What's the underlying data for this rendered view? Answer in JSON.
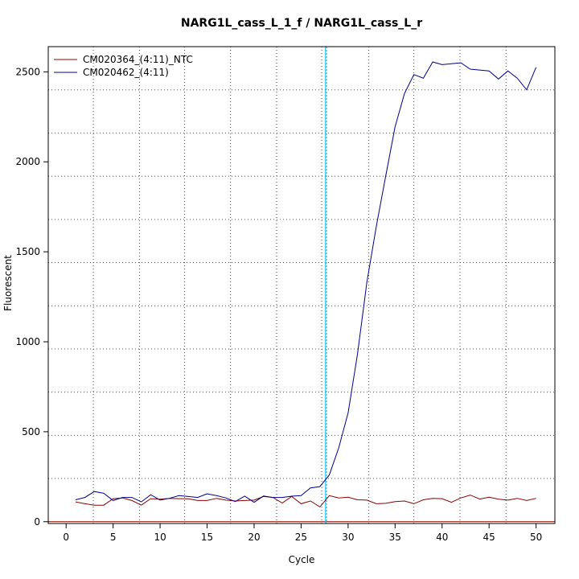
{
  "chart_data": {
    "type": "line",
    "title": "NARG1L_cass_L_1_f / NARG1L_cass_L_r",
    "xlabel": "Cycle",
    "ylabel": "Fluorescent",
    "xlim": [
      -1.9,
      52
    ],
    "ylim": [
      -10,
      2640
    ],
    "x_ticks": [
      0,
      5,
      10,
      15,
      20,
      25,
      30,
      35,
      40,
      45,
      50
    ],
    "y_ticks": [
      0,
      500,
      1000,
      1500,
      2000,
      2500
    ],
    "grid": {
      "x_lines": [
        2.9,
        7.8,
        12.6,
        17.5,
        22.4,
        27.2,
        32.2,
        37.0,
        41.9,
        46.8
      ],
      "y_lines": [
        240,
        480,
        720,
        960,
        1200,
        1440,
        1680,
        1920,
        2160,
        2400
      ]
    },
    "threshold": {
      "x": 27.6,
      "color": "#00bfff"
    },
    "baseline": {
      "y": 0,
      "color": "#8b0000"
    },
    "legend_position": "top-left",
    "series": [
      {
        "name": "CM020364_(4:11)_NTC",
        "color": "#8b0000",
        "x": [
          1,
          2,
          3,
          4,
          5,
          6,
          7,
          8,
          9,
          10,
          11,
          12,
          13,
          14,
          15,
          16,
          17,
          18,
          19,
          20,
          21,
          22,
          23,
          24,
          25,
          26,
          27,
          28,
          29,
          30,
          31,
          32,
          33,
          34,
          35,
          36,
          37,
          38,
          39,
          40,
          41,
          42,
          43,
          44,
          45,
          46,
          47,
          48,
          49,
          50
        ],
        "y": [
          110,
          100,
          92,
          92,
          128,
          132,
          118,
          92,
          128,
          125,
          130,
          128,
          127,
          118,
          118,
          130,
          120,
          115,
          118,
          120,
          140,
          135,
          104,
          140,
          100,
          115,
          82,
          145,
          132,
          136,
          122,
          120,
          100,
          102,
          112,
          115,
          100,
          122,
          130,
          128,
          108,
          132,
          148,
          126,
          136,
          125,
          120,
          130,
          118,
          130
        ]
      },
      {
        "name": "CM020462_(4:11)",
        "color": "#00008b",
        "x": [
          1,
          2,
          3,
          4,
          5,
          6,
          7,
          8,
          9,
          10,
          11,
          12,
          13,
          14,
          15,
          16,
          17,
          18,
          19,
          20,
          21,
          22,
          23,
          24,
          25,
          26,
          27,
          28,
          29,
          30,
          31,
          32,
          33,
          34,
          35,
          36,
          37,
          38,
          39,
          40,
          41,
          42,
          43,
          44,
          45,
          46,
          47,
          48,
          49,
          50
        ],
        "y": [
          122,
          135,
          168,
          158,
          118,
          135,
          135,
          110,
          150,
          120,
          130,
          145,
          140,
          135,
          155,
          145,
          132,
          112,
          142,
          108,
          143,
          135,
          135,
          142,
          145,
          188,
          195,
          260,
          410,
          605,
          930,
          1330,
          1640,
          1920,
          2195,
          2380,
          2485,
          2465,
          2555,
          2540,
          2545,
          2550,
          2515,
          2510,
          2505,
          2460,
          2505,
          2465,
          2400,
          2525
        ]
      }
    ]
  }
}
